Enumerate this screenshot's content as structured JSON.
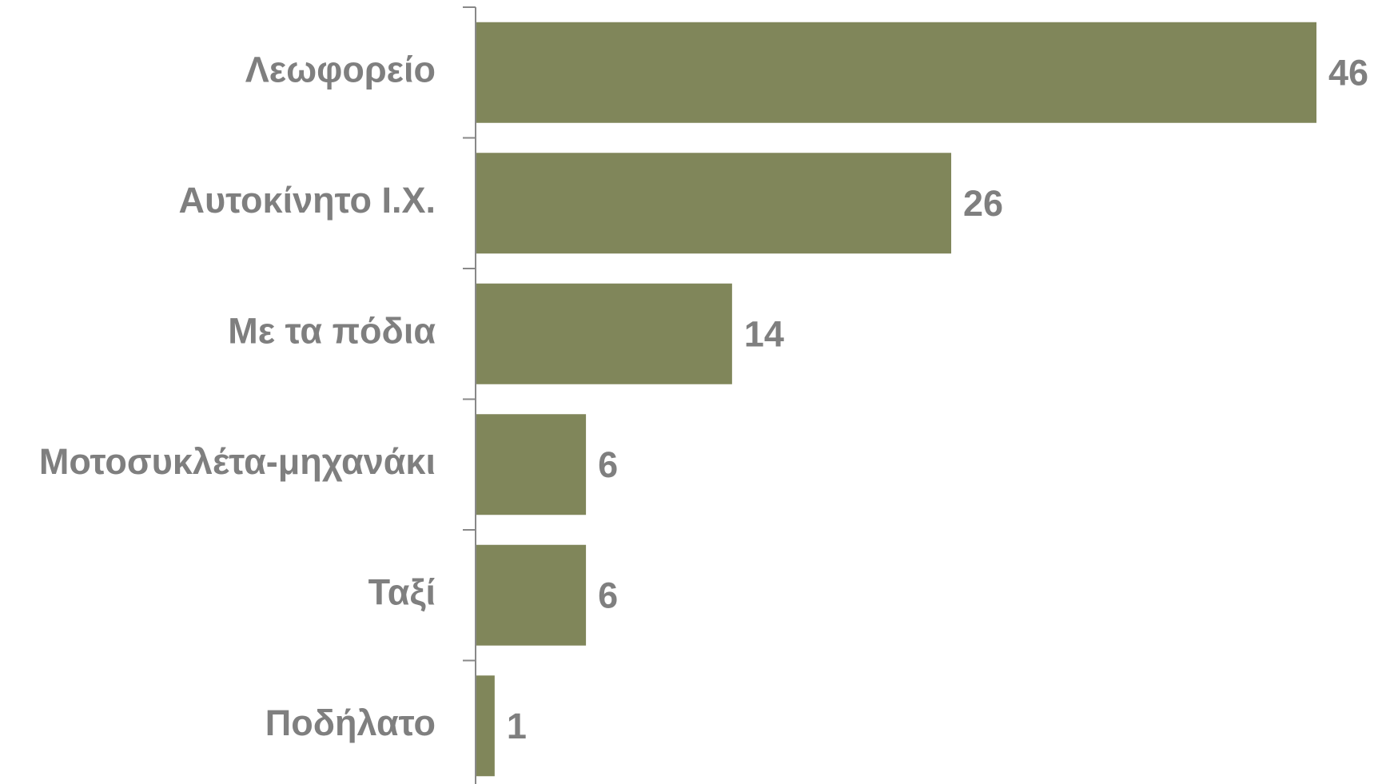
{
  "chart_data": {
    "type": "barh",
    "categories": [
      "Λεωφορείο",
      "Αυτοκίνητο Ι.Χ.",
      "Με τα πόδια",
      "Μοτοσυκλέτα-μηχανάκι",
      "Ταξί",
      "Ποδήλατο"
    ],
    "values": [
      46,
      26,
      14,
      6,
      6,
      1
    ],
    "color": "#80865a"
  }
}
